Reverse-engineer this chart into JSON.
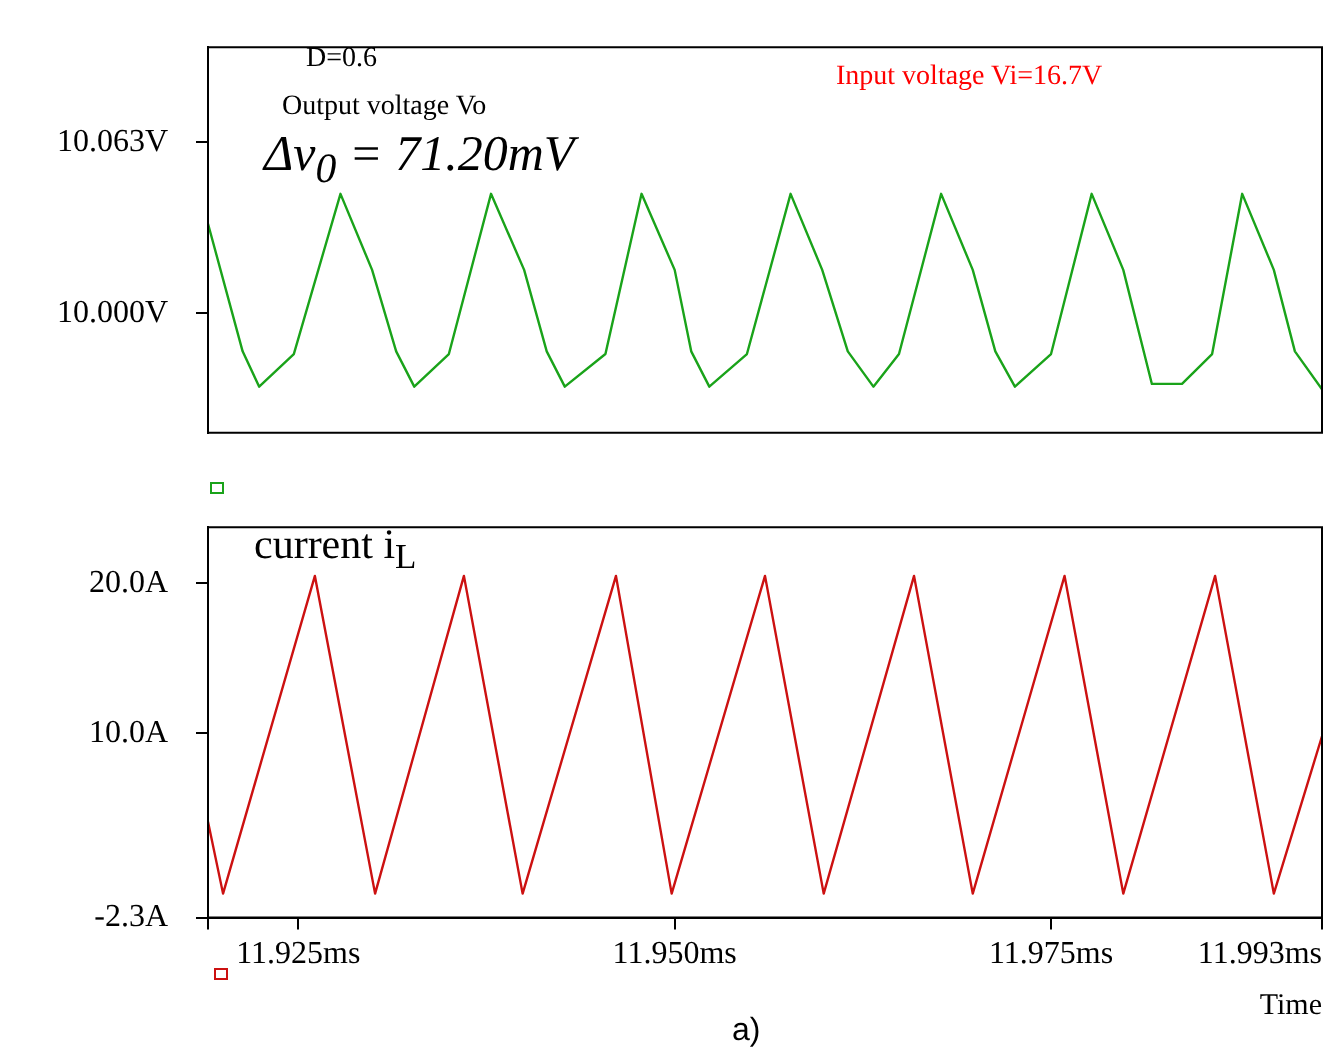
{
  "chart_data": [
    {
      "type": "line",
      "x": [
        11.919,
        11.9213,
        11.9224,
        11.9247,
        11.9278,
        11.9299,
        11.9315,
        11.9327,
        11.935,
        11.9378,
        11.94,
        11.9415,
        11.9427,
        11.9454,
        11.9478,
        11.95,
        11.9511,
        11.9523,
        11.9548,
        11.9577,
        11.9598,
        11.9615,
        11.9632,
        11.9649,
        11.9677,
        11.9698,
        11.9713,
        11.9726,
        11.975,
        11.9777,
        11.9798,
        11.9817,
        11.9837,
        11.9857,
        11.9877,
        11.9898,
        11.9912,
        11.993
      ],
      "series": [
        {
          "color": "#1aa31a",
          "values": [
            10.033,
            9.986,
            9.973,
            9.985,
            10.044,
            10.016,
            9.986,
            9.973,
            9.985,
            10.044,
            10.016,
            9.986,
            9.973,
            9.985,
            10.044,
            10.016,
            9.986,
            9.973,
            9.985,
            10.044,
            10.016,
            9.986,
            9.973,
            9.985,
            10.044,
            10.016,
            9.986,
            9.973,
            9.985,
            10.044,
            10.016,
            9.974,
            9.974,
            9.985,
            10.044,
            10.016,
            9.986,
            9.972
          ]
        }
      ],
      "xlim": [
        11.919,
        11.993
      ],
      "ylim": [
        9.956,
        10.098
      ],
      "yticks": [
        {
          "value": 10.063,
          "label": "10.063V"
        },
        {
          "value": 10.0,
          "label": "10.000V"
        }
      ],
      "tick_labels": "y",
      "grid": false,
      "legend": false,
      "marker": "none",
      "annotations": [
        "D=0.6",
        "Output voltage Vo",
        "Δv$_{0}$ = 71.20mV",
        "Input voltage Vi=16.7V"
      ]
    },
    {
      "type": "line",
      "x": [
        11.919,
        11.92,
        11.9261,
        11.9301,
        11.936,
        11.9399,
        11.9461,
        11.9498,
        11.956,
        11.9599,
        11.9659,
        11.9698,
        11.9759,
        11.9798,
        11.9859,
        11.9898,
        11.993
      ],
      "series": [
        {
          "color": "#cc1111",
          "values": [
            4.1,
            -0.7,
            20.5,
            -0.7,
            20.5,
            -0.7,
            20.5,
            -0.7,
            20.5,
            -0.7,
            20.5,
            -0.7,
            20.5,
            -0.7,
            20.5,
            -0.7,
            9.8
          ]
        }
      ],
      "xlim": [
        11.919,
        11.993
      ],
      "ylim": [
        -2.3,
        23.75
      ],
      "xticks": [
        {
          "value": 11.919,
          "label": null
        },
        {
          "value": 11.925,
          "label": "11.925ms"
        },
        {
          "value": 11.95,
          "label": "11.950ms"
        },
        {
          "value": 11.975,
          "label": "11.975ms"
        },
        {
          "value": 11.993,
          "label": "11.993ms"
        }
      ],
      "yticks": [
        {
          "value": 20.0,
          "label": "20.0A"
        },
        {
          "value": 10.0,
          "label": "10.0A"
        },
        {
          "value": -2.3,
          "label": "-2.3A"
        }
      ],
      "xlabel": "Time",
      "grid": false,
      "legend": false,
      "marker": "none",
      "annotations": [
        "current i$_{L}$",
        "a)"
      ]
    }
  ]
}
